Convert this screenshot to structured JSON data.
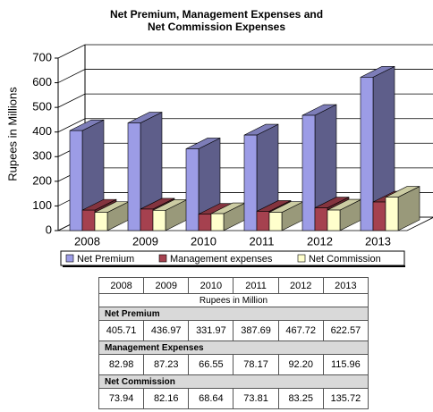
{
  "chart_data": {
    "type": "bar3d",
    "title": "Net Premium, Management Expenses and Net Commission Expenses",
    "y_label": "Rupees in Millions",
    "categories": [
      "2008",
      "2009",
      "2010",
      "2011",
      "2012",
      "2013"
    ],
    "series": [
      {
        "name": "Net Premium",
        "color": "#9c9ce6",
        "values": [
          405.71,
          436.97,
          331.97,
          387.69,
          467.72,
          622.57
        ],
        "value_labels": [
          "405.71",
          "436.97",
          "331.97",
          "387.69",
          "467.72",
          "622.57"
        ]
      },
      {
        "name": "Management expenses",
        "color": "#a5414f",
        "values": [
          82.98,
          87.23,
          66.55,
          78.17,
          92.2,
          115.96
        ],
        "value_labels": [
          "82.98",
          "87.23",
          "66.55",
          "78.17",
          "92.20",
          "115.96"
        ]
      },
      {
        "name": "Net Commission",
        "color": "#ffffcc",
        "values": [
          73.94,
          82.16,
          68.64,
          73.81,
          83.25,
          135.72
        ],
        "value_labels": [
          "73.94",
          "82.16",
          "68.64",
          "73.81",
          "83.25",
          "135.72"
        ]
      }
    ],
    "ylim": [
      0,
      700
    ],
    "yticks": [
      0,
      100,
      200,
      300,
      400,
      500,
      600,
      700
    ],
    "grid": true,
    "legend": "bottom"
  },
  "table": {
    "unit": "Rupees in Million",
    "row_labels": [
      "Net Premium",
      "Management Expenses",
      "Net Commission"
    ]
  }
}
